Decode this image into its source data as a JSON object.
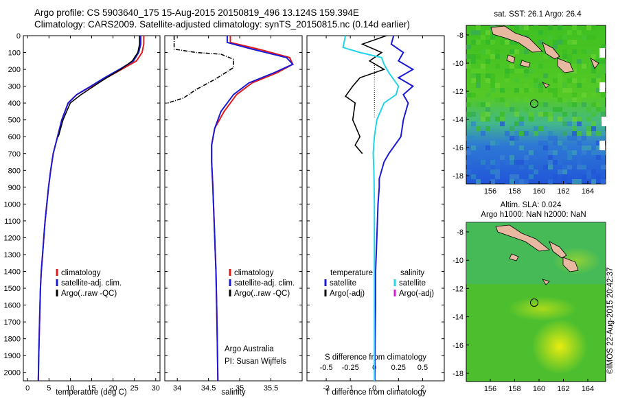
{
  "header": {
    "line1": "Argo profile: CS 5903640_175 15-Aug-2015 20150819_496 13.124S 159.394E",
    "line2": "Climatology: CARS2009. Satellite-adjusted climatology: synTS_20150815.nc (0.14d earlier)"
  },
  "colors": {
    "climatology": "#e0191c",
    "satellite": "#1a1ad6",
    "argo": "#000000",
    "salinity_sat": "#22d4e8",
    "argo_adj": "#d21bd2"
  },
  "chart_data": [
    {
      "type": "line",
      "xlabel": "temperature (deg C)",
      "xlim": [
        -1,
        31
      ],
      "xticks": [
        0,
        5,
        10,
        15,
        20,
        25,
        30
      ],
      "ylim": [
        0,
        2050
      ],
      "yticks": [
        0,
        100,
        200,
        300,
        400,
        500,
        600,
        700,
        800,
        900,
        1000,
        1100,
        1200,
        1300,
        1400,
        1500,
        1600,
        1700,
        1800,
        1900,
        2000
      ],
      "legend": [
        "climatology",
        "satellite-adj. clim.",
        "Argo(..raw -QC)"
      ],
      "series": [
        {
          "name": "climatology",
          "x": [
            27.2,
            27.2,
            26.8,
            25.5,
            22.0,
            18.5,
            15.0,
            11.5,
            9.5,
            8.0,
            7.0,
            6.0,
            5.4,
            4.9,
            4.5,
            4.1,
            3.8,
            3.5,
            3.2,
            3.0,
            2.8,
            2.6,
            2.5
          ],
          "y": [
            0,
            50,
            100,
            150,
            200,
            250,
            300,
            350,
            400,
            500,
            600,
            700,
            800,
            900,
            1000,
            1100,
            1200,
            1300,
            1400,
            1500,
            1700,
            1900,
            2050
          ]
        },
        {
          "name": "satellite-adj. clim.",
          "x": [
            26.5,
            26.5,
            26.0,
            24.8,
            21.5,
            18.0,
            14.8,
            11.5,
            9.5,
            8.0,
            7.0,
            6.0,
            5.4,
            4.9,
            4.5,
            4.1,
            3.8,
            3.5,
            3.2,
            3.0,
            2.8,
            2.6,
            2.5
          ],
          "y": [
            0,
            50,
            100,
            150,
            200,
            250,
            300,
            350,
            400,
            500,
            600,
            700,
            800,
            900,
            1000,
            1100,
            1200,
            1300,
            1400,
            1500,
            1700,
            1900,
            2050
          ]
        },
        {
          "name": "Argo(..raw -QC)",
          "x": [
            26.2,
            26.2,
            25.8,
            24.5,
            21.8,
            18.5,
            15.5,
            12.5,
            10.0,
            8.3,
            7.2
          ],
          "y": [
            0,
            50,
            100,
            150,
            200,
            250,
            300,
            350,
            400,
            500,
            600
          ]
        }
      ]
    },
    {
      "type": "line",
      "xlabel": "salinity",
      "xlim": [
        33.8,
        36.0
      ],
      "xticks": [
        34,
        34.5,
        35,
        35.5
      ],
      "ylim": [
        0,
        2050
      ],
      "legend": [
        "climatology",
        "satellite-adj. clim.",
        "Argo(..raw -QC)"
      ],
      "annotation": [
        "Argo Australia",
        "PI: Susan Wijffels"
      ],
      "series": [
        {
          "name": "climatology",
          "x": [
            34.85,
            34.85,
            35.3,
            35.8,
            35.85,
            35.6,
            35.2,
            34.95,
            34.75,
            34.6,
            34.55,
            34.55,
            34.57,
            34.58,
            34.59,
            34.6,
            34.61,
            34.62,
            34.63,
            34.64,
            34.65
          ],
          "y": [
            0,
            40,
            80,
            130,
            170,
            220,
            280,
            350,
            450,
            550,
            650,
            750,
            900,
            1000,
            1100,
            1200,
            1300,
            1400,
            1600,
            1800,
            2050
          ]
        },
        {
          "name": "satellite-adj. clim.",
          "x": [
            34.8,
            34.8,
            35.2,
            35.75,
            35.85,
            35.55,
            35.15,
            34.9,
            34.7,
            34.6,
            34.55,
            34.55,
            34.57,
            34.58,
            34.59,
            34.6,
            34.61,
            34.62,
            34.63,
            34.64,
            34.65
          ],
          "y": [
            0,
            40,
            80,
            130,
            170,
            220,
            280,
            350,
            450,
            550,
            650,
            750,
            900,
            1000,
            1100,
            1200,
            1300,
            1400,
            1600,
            1800,
            2050
          ]
        },
        {
          "name": "Argo(..raw -QC)",
          "x": [
            33.95,
            33.95,
            34.3,
            34.7,
            34.9,
            34.9,
            34.6,
            34.3,
            34.1,
            33.85
          ],
          "y": [
            0,
            80,
            100,
            110,
            140,
            190,
            260,
            320,
            370,
            400
          ]
        }
      ]
    },
    {
      "type": "line",
      "xlabel": "T difference from climatology",
      "xlabel_top": "S difference from climatology",
      "xlim": [
        -2.8,
        2.9
      ],
      "xticks": [
        -2,
        -1,
        0,
        1,
        2
      ],
      "xticks_top": [
        -0.5,
        -0.25,
        0,
        0.25,
        0.5
      ],
      "ylim": [
        0,
        2050
      ],
      "legend_temperature": [
        "temperature",
        "satellite",
        "Argo(-adj)"
      ],
      "legend_salinity": [
        "salinity",
        "satellite",
        "Argo(-adj)"
      ],
      "series": [
        {
          "name": "temperature satellite",
          "x": [
            0.8,
            0.7,
            1.2,
            1.0,
            1.6,
            1.0,
            1.6,
            1.2,
            1.4,
            1.2,
            1.1,
            0.6,
            0.4,
            0.3,
            0.2,
            0.2,
            0.15,
            0.1,
            0.05,
            0.05,
            0.03,
            0.02
          ],
          "y": [
            0,
            50,
            100,
            150,
            200,
            250,
            300,
            350,
            400,
            500,
            600,
            700,
            750,
            800,
            850,
            900,
            1000,
            1200,
            1400,
            1600,
            1800,
            2050
          ]
        },
        {
          "name": "temperature Argo(-adj)",
          "x": [
            0.5,
            -0.5,
            0.3,
            -0.2,
            0.4,
            -0.6,
            -0.9,
            -1.2,
            -0.8,
            -0.9,
            -0.6,
            -0.8,
            -0.5
          ],
          "y": [
            0,
            50,
            100,
            150,
            200,
            250,
            300,
            360,
            400,
            500,
            600,
            650,
            700
          ]
        },
        {
          "name": "salinity satellite",
          "x": [
            -1.2,
            -1.3,
            -0.6,
            0.3,
            0.4,
            0.6,
            0.8,
            1.0,
            0.9,
            0.4,
            0.1,
            0.0,
            -0.05,
            -0.02,
            0.0,
            0.0,
            0.0
          ],
          "y": [
            0,
            70,
            100,
            130,
            170,
            220,
            260,
            300,
            350,
            400,
            500,
            600,
            700,
            800,
            1000,
            1500,
            2050
          ]
        }
      ]
    }
  ],
  "maps": [
    {
      "title": "sat. SST: 26.1 Argo: 26.4",
      "xticks": [
        "156",
        "158",
        "160",
        "162",
        "164"
      ],
      "yticks": [
        "-8",
        "-10",
        "-12",
        "-14",
        "-16",
        "-18"
      ]
    },
    {
      "title_line1": "Altim. SLA: 0.024",
      "title_line2": "Argo h1000: NaN h2000: NaN",
      "xticks": [
        "156",
        "158",
        "160",
        "162",
        "164"
      ],
      "yticks": [
        "-8",
        "-10",
        "-12",
        "-14",
        "-16",
        "-18"
      ]
    }
  ],
  "footer_stamp": "©IMOS 22-Aug-2015 20:42:37"
}
